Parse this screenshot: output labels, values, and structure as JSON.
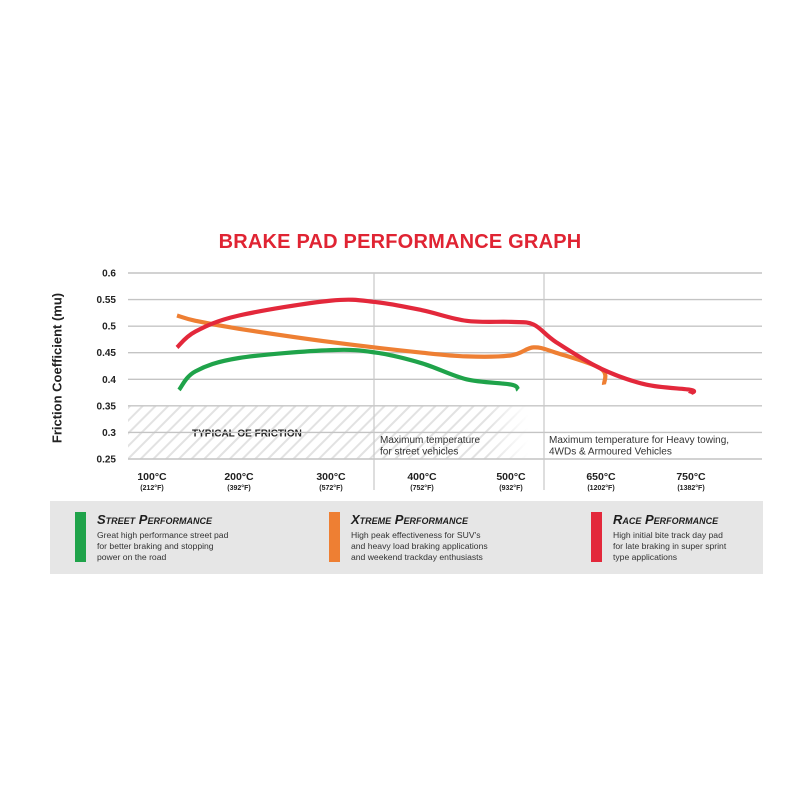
{
  "chart_data": {
    "type": "line",
    "title": "BRAKE PAD PERFORMANCE GRAPH",
    "xlabel": "",
    "ylabel": "Friction Coefficient (mu)",
    "ylim": [
      0.25,
      0.6
    ],
    "yticks": [
      "0.6",
      "0.55",
      "0.5",
      "0.45",
      "0.4",
      "0.35",
      "0.3",
      "0.25"
    ],
    "xticks": [
      {
        "label": "100°C",
        "sub": "(212°F)"
      },
      {
        "label": "200°C",
        "sub": "(392°F)"
      },
      {
        "label": "300°C",
        "sub": "(572°F)"
      },
      {
        "label": "400°C",
        "sub": "(752°F)"
      },
      {
        "label": "500°C",
        "sub": "(932°F)"
      },
      {
        "label": "650°C",
        "sub": "(1202°F)"
      },
      {
        "label": "750°C",
        "sub": "(1382°F)"
      }
    ],
    "grid": true,
    "series": [
      {
        "name": "Street Performance",
        "color": "#1fa34a",
        "points": [
          [
            100,
            0.38
          ],
          [
            150,
            0.415
          ],
          [
            200,
            0.44
          ],
          [
            300,
            0.455
          ],
          [
            350,
            0.45
          ],
          [
            400,
            0.43
          ],
          [
            450,
            0.4
          ],
          [
            500,
            0.39
          ],
          [
            550,
            0.38
          ]
        ]
      },
      {
        "name": "Xtreme Performance",
        "color": "#ee7f33",
        "points": [
          [
            100,
            0.52
          ],
          [
            150,
            0.51
          ],
          [
            200,
            0.495
          ],
          [
            300,
            0.47
          ],
          [
            400,
            0.45
          ],
          [
            450,
            0.443
          ],
          [
            500,
            0.445
          ],
          [
            550,
            0.46
          ],
          [
            600,
            0.45
          ],
          [
            650,
            0.42
          ],
          [
            700,
            0.39
          ]
        ]
      },
      {
        "name": "Race Performance",
        "color": "#e3283b",
        "points": [
          [
            100,
            0.46
          ],
          [
            150,
            0.49
          ],
          [
            200,
            0.52
          ],
          [
            300,
            0.548
          ],
          [
            350,
            0.545
          ],
          [
            400,
            0.53
          ],
          [
            450,
            0.51
          ],
          [
            500,
            0.508
          ],
          [
            550,
            0.503
          ],
          [
            600,
            0.47
          ],
          [
            650,
            0.42
          ],
          [
            700,
            0.39
          ],
          [
            750,
            0.38
          ],
          [
            800,
            0.373
          ]
        ]
      }
    ],
    "zones": [
      {
        "label": "TYPICAL OE FRICTION",
        "range": [
          0.25,
          0.35
        ]
      }
    ],
    "annotations": [
      {
        "text": "Maximum temperature\nfor street vehicles",
        "at_x": 400
      },
      {
        "text": "Maximum temperature for Heavy towing,\n4WDs & Armoured Vehicles",
        "at_x": 600
      }
    ]
  },
  "legend": {
    "items": [
      {
        "name": "Street Performance",
        "color": "#1fa34a",
        "desc": [
          "Great high performance street pad",
          "for better braking and stopping",
          "power on the road"
        ]
      },
      {
        "name": "Xtreme Performance",
        "color": "#ee7f33",
        "desc": [
          "High peak effectiveness for SUV's",
          "and heavy load braking applications",
          "and weekend trackday enthusiasts"
        ]
      },
      {
        "name": "Race Performance",
        "color": "#e3283b",
        "desc": [
          "High initial bite track day pad",
          "for late braking in super sprint",
          "type applications"
        ]
      }
    ]
  }
}
